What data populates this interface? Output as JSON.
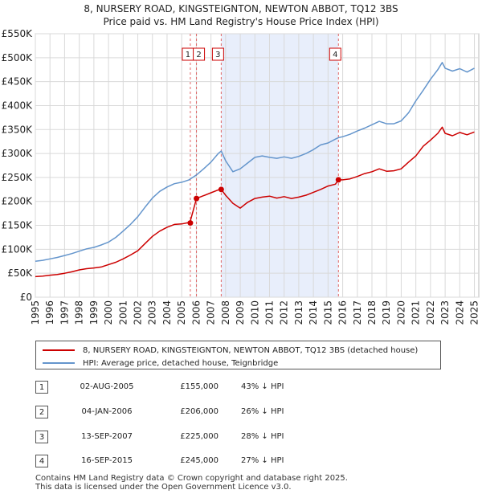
{
  "title": "8, NURSERY ROAD, KINGSTEIGNTON, NEWTON ABBOT, TQ12 3BS",
  "subtitle": "Price paid vs. HM Land Registry's House Price Index (HPI)",
  "chart_data": {
    "type": "line",
    "title": "8, NURSERY ROAD, KINGSTEIGNTON, NEWTON ABBOT, TQ12 3BS",
    "subtitle": "Price paid vs. HM Land Registry's House Price Index (HPI)",
    "xlabel": "",
    "ylabel": "",
    "xlim": [
      1995,
      2025.3
    ],
    "ylim": [
      0,
      550000
    ],
    "grid": true,
    "y_ticks": [
      0,
      50000,
      100000,
      150000,
      200000,
      250000,
      300000,
      350000,
      400000,
      450000,
      500000,
      550000
    ],
    "y_tick_labels": [
      "£0",
      "£50K",
      "£100K",
      "£150K",
      "£200K",
      "£250K",
      "£300K",
      "£350K",
      "£400K",
      "£450K",
      "£500K",
      "£550K"
    ],
    "x_ticks": [
      1995,
      1996,
      1997,
      1998,
      1999,
      2000,
      2001,
      2002,
      2003,
      2004,
      2005,
      2006,
      2007,
      2008,
      2009,
      2010,
      2011,
      2012,
      2013,
      2014,
      2015,
      2016,
      2017,
      2018,
      2019,
      2020,
      2021,
      2022,
      2023,
      2024,
      2025
    ],
    "x_tick_labels": [
      "1995",
      "1996",
      "1997",
      "1998",
      "1999",
      "2000",
      "2001",
      "2002",
      "2003",
      "2004",
      "2005",
      "2006",
      "2007",
      "2008",
      "2009",
      "2010",
      "2011",
      "2012",
      "2013",
      "2014",
      "2015",
      "2016",
      "2017",
      "2018",
      "2019",
      "2020",
      "2021",
      "2022",
      "2023",
      "2024",
      "2025"
    ],
    "shaded_region": [
      2007.7,
      2015.7
    ],
    "series": [
      {
        "name": "8, NURSERY ROAD, KINGSTEIGNTON, NEWTON ABBOT, TQ12 3BS (detached house)",
        "color": "#cc0000",
        "x": [
          1995,
          1995.5,
          1996,
          1996.5,
          1997,
          1997.5,
          1998,
          1998.5,
          1999,
          1999.5,
          2000,
          2000.5,
          2001,
          2001.5,
          2002,
          2002.5,
          2003,
          2003.5,
          2004,
          2004.5,
          2005,
          2005.5,
          2005.59,
          2005.6,
          2006.01,
          2006.5,
          2007,
          2007.5,
          2007.7,
          2008,
          2008.5,
          2009,
          2009.5,
          2010,
          2010.5,
          2011,
          2011.5,
          2012,
          2012.5,
          2013,
          2013.5,
          2014,
          2014.5,
          2015,
          2015.5,
          2015.71,
          2016,
          2016.5,
          2017,
          2017.5,
          2018,
          2018.5,
          2019,
          2019.5,
          2020,
          2020.5,
          2021,
          2021.5,
          2022,
          2022.5,
          2022.8,
          2023,
          2023.5,
          2024,
          2024.5,
          2025
        ],
        "values": [
          43000,
          44000,
          46000,
          47500,
          50000,
          53000,
          57000,
          59500,
          61000,
          63000,
          68000,
          73000,
          80000,
          88000,
          97000,
          112000,
          127000,
          138000,
          146000,
          152000,
          153000,
          156000,
          155000,
          160000,
          206000,
          212000,
          218000,
          224000,
          225000,
          213000,
          196000,
          186000,
          198000,
          206000,
          209000,
          211000,
          207000,
          210000,
          206000,
          209000,
          213000,
          219000,
          225000,
          232000,
          236000,
          245000,
          245000,
          247000,
          252000,
          258000,
          262000,
          268000,
          263000,
          264000,
          268000,
          282000,
          295000,
          315000,
          328000,
          342000,
          355000,
          342000,
          337000,
          344000,
          339000,
          345000
        ]
      },
      {
        "name": "HPI: Average price, detached house, Teignbridge",
        "color": "#6495cc",
        "x": [
          1995,
          1995.5,
          1996,
          1996.5,
          1997,
          1997.5,
          1998,
          1998.5,
          1999,
          1999.5,
          2000,
          2000.5,
          2001,
          2001.5,
          2002,
          2002.5,
          2003,
          2003.5,
          2004,
          2004.5,
          2005,
          2005.5,
          2006,
          2006.5,
          2007,
          2007.5,
          2007.7,
          2008,
          2008.5,
          2009,
          2009.5,
          2010,
          2010.5,
          2011,
          2011.5,
          2012,
          2012.5,
          2013,
          2013.5,
          2014,
          2014.5,
          2015,
          2015.5,
          2015.71,
          2016,
          2016.5,
          2017,
          2017.5,
          2018,
          2018.5,
          2019,
          2019.5,
          2020,
          2020.5,
          2021,
          2021.5,
          2022,
          2022.5,
          2022.8,
          2023,
          2023.5,
          2024,
          2024.5,
          2025
        ],
        "values": [
          75000,
          77000,
          80000,
          83000,
          87000,
          91000,
          96000,
          101000,
          104000,
          109000,
          115000,
          125000,
          138000,
          152000,
          168000,
          188000,
          207000,
          221000,
          230000,
          237000,
          240000,
          245000,
          255000,
          268000,
          282000,
          300000,
          305000,
          285000,
          262000,
          268000,
          280000,
          292000,
          295000,
          292000,
          290000,
          293000,
          290000,
          294000,
          300000,
          308000,
          318000,
          322000,
          330000,
          333000,
          335000,
          340000,
          347000,
          353000,
          360000,
          367000,
          362000,
          362000,
          368000,
          385000,
          410000,
          432000,
          455000,
          475000,
          490000,
          478000,
          472000,
          477000,
          470000,
          478000
        ]
      }
    ],
    "markers": [
      {
        "label": "1",
        "x": 2005.59,
        "y": 155000
      },
      {
        "label": "2",
        "x": 2006.01,
        "y": 206000
      },
      {
        "label": "3",
        "x": 2007.7,
        "y": 225000
      },
      {
        "label": "4",
        "x": 2015.71,
        "y": 245000
      }
    ]
  },
  "legend": {
    "property_label": "8, NURSERY ROAD, KINGSTEIGNTON, NEWTON ABBOT, TQ12 3BS (detached house)",
    "hpi_label": "HPI: Average price, detached house, Teignbridge",
    "property_color": "#cc0000",
    "hpi_color": "#6495cc"
  },
  "transactions": [
    {
      "num": "1",
      "date": "02-AUG-2005",
      "price": "£155,000",
      "hpi": "43% ↓ HPI"
    },
    {
      "num": "2",
      "date": "04-JAN-2006",
      "price": "£206,000",
      "hpi": "26% ↓ HPI"
    },
    {
      "num": "3",
      "date": "13-SEP-2007",
      "price": "£225,000",
      "hpi": "28% ↓ HPI"
    },
    {
      "num": "4",
      "date": "16-SEP-2015",
      "price": "£245,000",
      "hpi": "27% ↓ HPI"
    }
  ],
  "footer": {
    "line1": "Contains HM Land Registry data © Crown copyright and database right 2025.",
    "line2": "This data is licensed under the Open Government Licence v3.0."
  }
}
